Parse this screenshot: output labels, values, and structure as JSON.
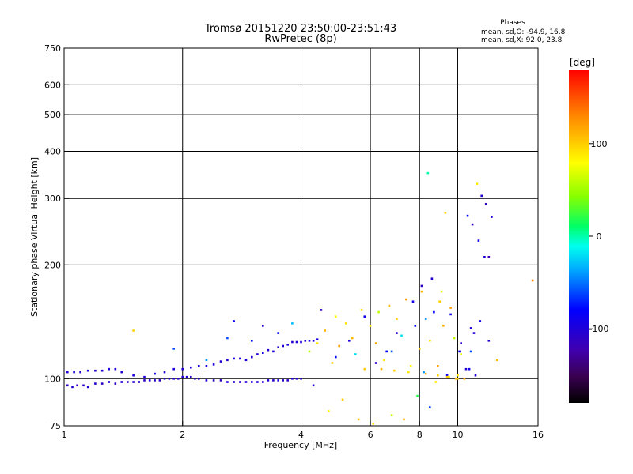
{
  "chart_data": {
    "type": "scatter",
    "title": "Tromsø 20151220 23:50:00-23:51:43",
    "subtitle": "RwPretec (8p)",
    "xlabel": "Frequency [MHz]",
    "ylabel": "Stationary phase Virtual Height [km]",
    "xscale": "log",
    "yscale": "log",
    "xlim": [
      1,
      16
    ],
    "ylim": [
      75,
      750
    ],
    "xticks": [
      1,
      2,
      4,
      6,
      8,
      10,
      16
    ],
    "xtick_labels": [
      "1",
      "2",
      "4",
      "6",
      "8",
      "10",
      "16"
    ],
    "xgrid": [
      2,
      4,
      6,
      8,
      10
    ],
    "yticks": [
      75,
      100,
      200,
      300,
      400,
      500,
      600,
      750
    ],
    "ytick_labels": [
      "75",
      "100",
      "200",
      "300",
      "400",
      "500",
      "600",
      "750"
    ],
    "ygrid": [
      100,
      200,
      300,
      400,
      500,
      600
    ],
    "grid": true,
    "phase_stats": {
      "title": "Phases",
      "o_line": "mean, sd,O: -94.9, 16.8",
      "x_line": "mean, sd,X:  92.0, 23.8"
    },
    "colorbar": {
      "label": "[deg]",
      "range": [
        -180,
        180
      ],
      "ticks": [
        100,
        0,
        -100
      ],
      "tick_labels": [
        "100",
        "0",
        "-100"
      ],
      "position": "right"
    },
    "series": [
      {
        "trace": "low_band",
        "freq_mhz": [
          1.02,
          1.05,
          1.08,
          1.12,
          1.15,
          1.2,
          1.25,
          1.3,
          1.35,
          1.4,
          1.45,
          1.5,
          1.55,
          1.6,
          1.65,
          1.7,
          1.75,
          1.8,
          1.85,
          1.9,
          1.95,
          2.0,
          2.05,
          2.1,
          2.15,
          2.2,
          2.3,
          2.4,
          2.5,
          2.6,
          2.7,
          2.8,
          2.9,
          3.0,
          3.1,
          3.2,
          3.3,
          3.4,
          3.5,
          3.6,
          3.7,
          3.8,
          3.9,
          4.0
        ],
        "height_km": [
          96,
          95,
          96,
          96,
          95,
          97,
          97,
          98,
          97,
          98,
          98,
          98,
          98,
          99,
          99,
          99,
          99,
          100,
          100,
          100,
          100,
          101,
          101,
          101,
          100,
          100,
          99,
          99,
          99,
          98,
          98,
          98,
          98,
          98,
          98,
          98,
          99,
          99,
          99,
          99,
          99,
          100,
          100,
          100
        ],
        "phase_deg": [
          -110,
          -105,
          -112,
          -108,
          -100,
          -106,
          -110,
          -104,
          -108,
          -102,
          -110,
          -106,
          -104,
          -108,
          -100,
          -105,
          -110,
          -104,
          -106,
          -100,
          -108,
          -104,
          -102,
          -106,
          -108,
          -104,
          -100,
          -106,
          -110,
          -102,
          -104,
          -108,
          -106,
          -100,
          -104,
          -108,
          -102,
          -106,
          -100,
          -104,
          -108,
          -102,
          -106,
          -104
        ]
      },
      {
        "trace": "upper_band",
        "freq_mhz": [
          1.02,
          1.06,
          1.1,
          1.15,
          1.2,
          1.25,
          1.3,
          1.35,
          1.4,
          1.5,
          1.6,
          1.7,
          1.8,
          1.9,
          2.0,
          2.1,
          2.2,
          2.3,
          2.4,
          2.5,
          2.6,
          2.7,
          2.8,
          2.9,
          3.0,
          3.1,
          3.2,
          3.3,
          3.4,
          3.5,
          3.6,
          3.7,
          3.8,
          3.9,
          4.0,
          4.1,
          4.2,
          4.3,
          4.4
        ],
        "height_km": [
          104,
          104,
          104,
          105,
          105,
          105,
          106,
          106,
          104,
          102,
          101,
          103,
          104,
          106,
          106,
          107,
          108,
          108,
          109,
          111,
          112,
          113,
          113,
          112,
          114,
          116,
          117,
          119,
          118,
          121,
          122,
          123,
          125,
          125,
          125,
          126,
          126,
          126,
          127
        ],
        "phase_deg": [
          -100,
          -96,
          -104,
          -98,
          -100,
          -102,
          -96,
          -100,
          -104,
          -98,
          -100,
          -96,
          -102,
          -98,
          -100,
          -104,
          -96,
          -100,
          -98,
          -104,
          -100,
          -96,
          -102,
          -98,
          -100,
          -104,
          -96,
          -100,
          -98,
          -102,
          -100,
          -96,
          -104,
          -98,
          -100,
          -102,
          -96,
          -100,
          -98
        ]
      },
      {
        "trace": "scatter_points",
        "freq_mhz": [
          1.5,
          1.9,
          2.3,
          2.6,
          2.7,
          3.0,
          3.2,
          3.5,
          3.8,
          4.2,
          4.4,
          4.6,
          4.8,
          4.9,
          5.0,
          5.2,
          5.4,
          5.5,
          5.7,
          5.8,
          6.0,
          6.2,
          6.3,
          6.5,
          6.7,
          6.8,
          7.0,
          7.2,
          7.4,
          7.6,
          7.8,
          8.0,
          8.1,
          8.3,
          8.5,
          8.7,
          8.9,
          9.0,
          9.2,
          9.4,
          9.6,
          9.8,
          10.0,
          10.2,
          10.5,
          10.8,
          11.2,
          11.5,
          11.8,
          12.2,
          10.6,
          10.9,
          11.3,
          11.7,
          12.0,
          10.7,
          11.1,
          9.4,
          9.9,
          8.2,
          8.8,
          8.5,
          7.9,
          6.8,
          7.3,
          6.1,
          5.6,
          5.1,
          4.7,
          4.3,
          10.2,
          10.8,
          11.4,
          12.0,
          9.6,
          9.1,
          8.6,
          8.1,
          7.7,
          7.0,
          6.6,
          6.2,
          5.8,
          5.3,
          4.9,
          4.5,
          8.4,
          9.3,
          10.1,
          11.0,
          12.6,
          15.5,
          10.4,
          10.0,
          9.5,
          8.9,
          8.3,
          7.5,
          6.9,
          6.4
        ],
        "height_km": [
          134,
          120,
          112,
          128,
          142,
          126,
          138,
          132,
          140,
          118,
          124,
          134,
          110,
          146,
          122,
          140,
          128,
          116,
          152,
          106,
          138,
          124,
          150,
          112,
          156,
          118,
          144,
          130,
          162,
          108,
          138,
          120,
          170,
          144,
          126,
          150,
          108,
          160,
          138,
          102,
          154,
          128,
          102,
          116,
          106,
          118,
          328,
          305,
          290,
          268,
          270,
          256,
          232,
          210,
          210,
          106,
          102,
          101,
          100,
          104,
          98,
          84,
          90,
          80,
          78,
          76,
          78,
          88,
          82,
          96,
          124,
          136,
          142,
          126,
          148,
          170,
          184,
          176,
          160,
          132,
          118,
          110,
          146,
          126,
          114,
          152,
          350,
          275,
          118,
          132,
          112,
          182,
          100,
          100,
          101,
          102,
          103,
          104,
          105,
          106
        ],
        "phase_deg": [
          100,
          -60,
          -40,
          -60,
          -80,
          -80,
          -100,
          -80,
          -30,
          60,
          90,
          110,
          100,
          80,
          120,
          90,
          110,
          -20,
          90,
          100,
          80,
          120,
          60,
          90,
          110,
          -60,
          100,
          -20,
          120,
          80,
          -80,
          100,
          110,
          -40,
          90,
          -80,
          120,
          100,
          110,
          -90,
          120,
          60,
          90,
          70,
          -100,
          -60,
          90,
          -100,
          -110,
          -100,
          -80,
          -110,
          -90,
          -100,
          -120,
          -90,
          -100,
          100,
          110,
          -40,
          90,
          -60,
          20,
          60,
          110,
          90,
          100,
          100,
          80,
          -100,
          -110,
          -100,
          -90,
          -100,
          -90,
          70,
          -100,
          -110,
          -90,
          -100,
          -80,
          -110,
          -90,
          -100,
          -80,
          -110,
          0,
          100,
          -90,
          -100,
          110,
          130,
          110,
          100,
          90,
          100,
          110,
          90,
          100,
          110
        ]
      }
    ]
  }
}
